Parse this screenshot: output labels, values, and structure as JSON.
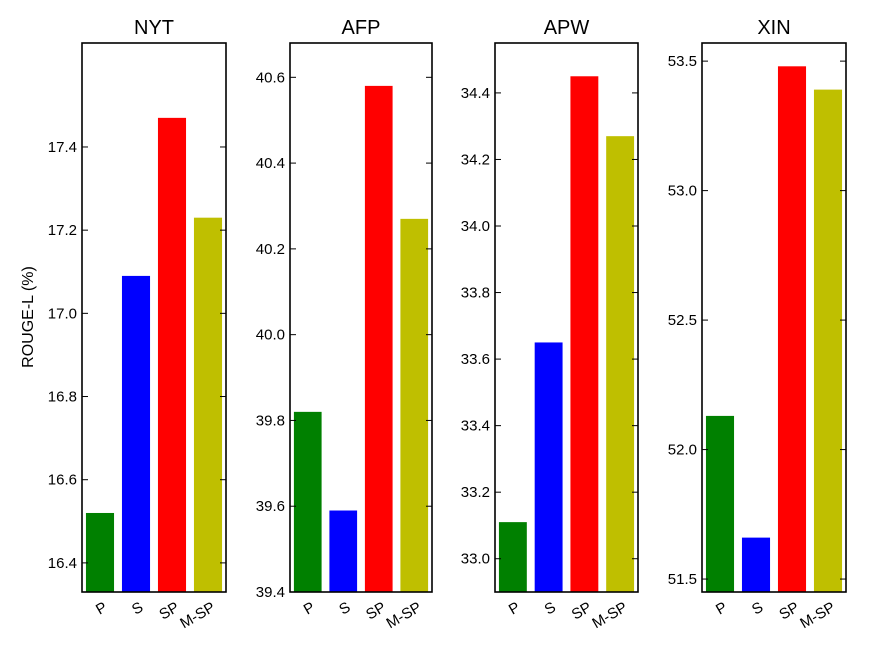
{
  "ylabel": "ROUGE-L (%)",
  "colors": {
    "P": "#008000",
    "S": "#0000ff",
    "SP": "#ff0000",
    "M-SP": "#bfbf00"
  },
  "chart_data": [
    {
      "type": "bar",
      "title": "NYT",
      "categories": [
        "P",
        "S",
        "SP",
        "M-SP"
      ],
      "values": [
        16.52,
        17.09,
        17.47,
        17.23
      ],
      "ylim": [
        16.33,
        17.65
      ],
      "yticks": [
        16.4,
        16.6,
        16.8,
        17.0,
        17.2,
        17.4
      ],
      "ytick_labels": [
        "16.4",
        "16.6",
        "16.8",
        "17.0",
        "17.2",
        "17.4"
      ]
    },
    {
      "type": "bar",
      "title": "AFP",
      "categories": [
        "P",
        "S",
        "SP",
        "M-SP"
      ],
      "values": [
        39.82,
        39.59,
        40.58,
        40.27
      ],
      "ylim": [
        39.4,
        40.68
      ],
      "yticks": [
        39.4,
        39.6,
        39.8,
        40.0,
        40.2,
        40.4,
        40.6
      ],
      "ytick_labels": [
        "39.4",
        "39.6",
        "39.8",
        "40.0",
        "40.2",
        "40.4",
        "40.6"
      ]
    },
    {
      "type": "bar",
      "title": "APW",
      "categories": [
        "P",
        "S",
        "SP",
        "M-SP"
      ],
      "values": [
        33.11,
        33.65,
        34.45,
        34.27
      ],
      "ylim": [
        32.9,
        34.55
      ],
      "yticks": [
        33.0,
        33.2,
        33.4,
        33.6,
        33.8,
        34.0,
        34.2,
        34.4
      ],
      "ytick_labels": [
        "33.0",
        "33.2",
        "33.4",
        "33.6",
        "33.8",
        "34.0",
        "34.2",
        "34.4"
      ]
    },
    {
      "type": "bar",
      "title": "XIN",
      "categories": [
        "P",
        "S",
        "SP",
        "M-SP"
      ],
      "values": [
        52.13,
        51.66,
        53.48,
        53.39
      ],
      "ylim": [
        51.45,
        53.57
      ],
      "yticks": [
        51.5,
        52.0,
        52.5,
        53.0,
        53.5
      ],
      "ytick_labels": [
        "51.5",
        "52.0",
        "52.5",
        "53.0",
        "53.5"
      ]
    }
  ]
}
